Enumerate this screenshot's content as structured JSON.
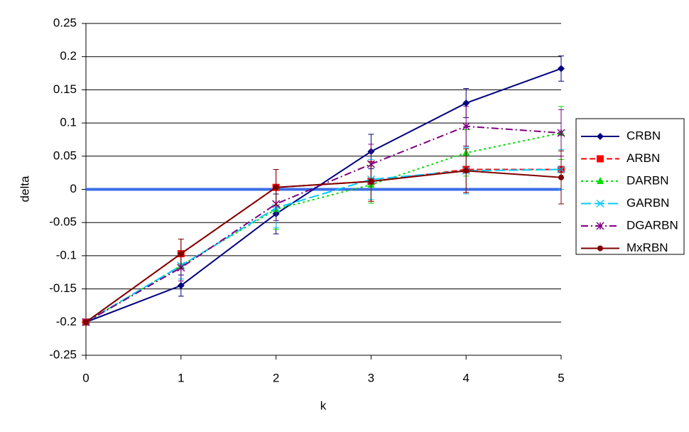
{
  "chart_data": {
    "type": "line",
    "x_label": "k",
    "y_label": "delta",
    "x": [
      0,
      1,
      2,
      3,
      4,
      5
    ],
    "xlim": [
      0,
      5
    ],
    "xticks": [
      0,
      1,
      2,
      3,
      4,
      5
    ],
    "ylim": [
      -0.25,
      0.25
    ],
    "yticks": [
      -0.25,
      -0.2,
      -0.15,
      -0.1,
      -0.05,
      0,
      0.05,
      0.1,
      0.15,
      0.2,
      0.25
    ],
    "grid": true,
    "reference_line": {
      "value": 0,
      "color": "#3a6ee8"
    },
    "legend": "right",
    "series": [
      {
        "name": "CRBN",
        "color": "#000080",
        "marker": "diamond",
        "dash": "solid",
        "values": [
          -0.2,
          -0.145,
          -0.037,
          0.057,
          0.13,
          0.182
        ],
        "errors": [
          0,
          0.016,
          0.03,
          0.026,
          0.022,
          0.019
        ]
      },
      {
        "name": "ARBN",
        "color": "#ff0000",
        "marker": "square",
        "dash": "dashed",
        "values": [
          -0.2,
          -0.097,
          0.003,
          0.012,
          0.03,
          0.03
        ],
        "errors": [
          0,
          0.022,
          0.027,
          0.03,
          0.035,
          0.03
        ]
      },
      {
        "name": "DARBN",
        "color": "#00dd00",
        "marker": "triangle",
        "dash": "dotted",
        "values": [
          -0.2,
          -0.115,
          -0.03,
          0.007,
          0.055,
          0.085
        ],
        "errors": [
          0,
          0.02,
          0.03,
          0.028,
          0.035,
          0.04
        ]
      },
      {
        "name": "GARBN",
        "color": "#00ccff",
        "marker": "x",
        "dash": "longdash",
        "values": [
          -0.2,
          -0.115,
          -0.028,
          0.015,
          0.028,
          0.03
        ],
        "errors": [
          0,
          0.02,
          0.03,
          0.03,
          0.035,
          0.03
        ]
      },
      {
        "name": "DGARBN",
        "color": "#800080",
        "marker": "star",
        "dash": "dashdot",
        "values": [
          -0.2,
          -0.118,
          -0.022,
          0.038,
          0.095,
          0.085
        ],
        "errors": [
          0,
          0.02,
          0.025,
          0.03,
          0.03,
          0.035
        ]
      },
      {
        "name": "MxRBN",
        "color": "#800000",
        "marker": "circle",
        "dash": "solid",
        "values": [
          -0.2,
          -0.097,
          0.003,
          0.012,
          0.028,
          0.018
        ],
        "errors": [
          0,
          0.022,
          0.027,
          0.03,
          0.033,
          0.04
        ]
      }
    ]
  }
}
